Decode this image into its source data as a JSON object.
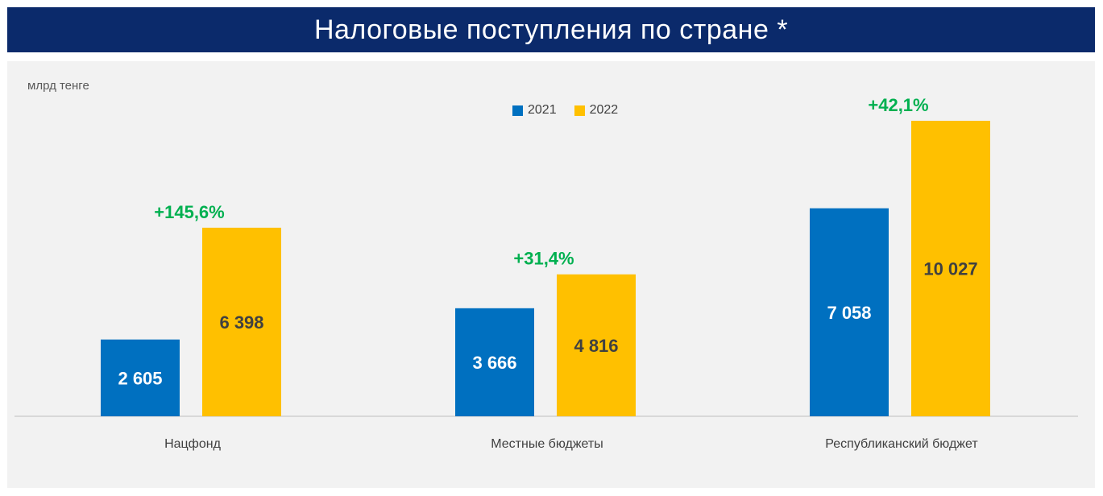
{
  "header": {
    "title": "Налоговые поступления по стране *"
  },
  "chart_data": {
    "type": "bar",
    "unit_label": "млрд тенге",
    "categories": [
      "Нацфонд",
      "Местные бюджеты",
      "Республиканский бюджет"
    ],
    "series": [
      {
        "name": "2021",
        "color": "#0070c0",
        "values": [
          2605,
          3666,
          7058
        ],
        "labels": [
          "2 605",
          "3 666",
          "7 058"
        ],
        "label_color": "#ffffff"
      },
      {
        "name": "2022",
        "color": "#ffc000",
        "values": [
          6398,
          4816,
          10027
        ],
        "labels": [
          "6 398",
          "4 816",
          "10 027"
        ],
        "label_color": "#404040"
      }
    ],
    "growth_labels": [
      "+145,6%",
      "+31,4%",
      "+42,1%"
    ],
    "growth_color": "#00b050",
    "ylim": [
      0,
      10027
    ],
    "grid": false,
    "legend_position": "top-center"
  }
}
